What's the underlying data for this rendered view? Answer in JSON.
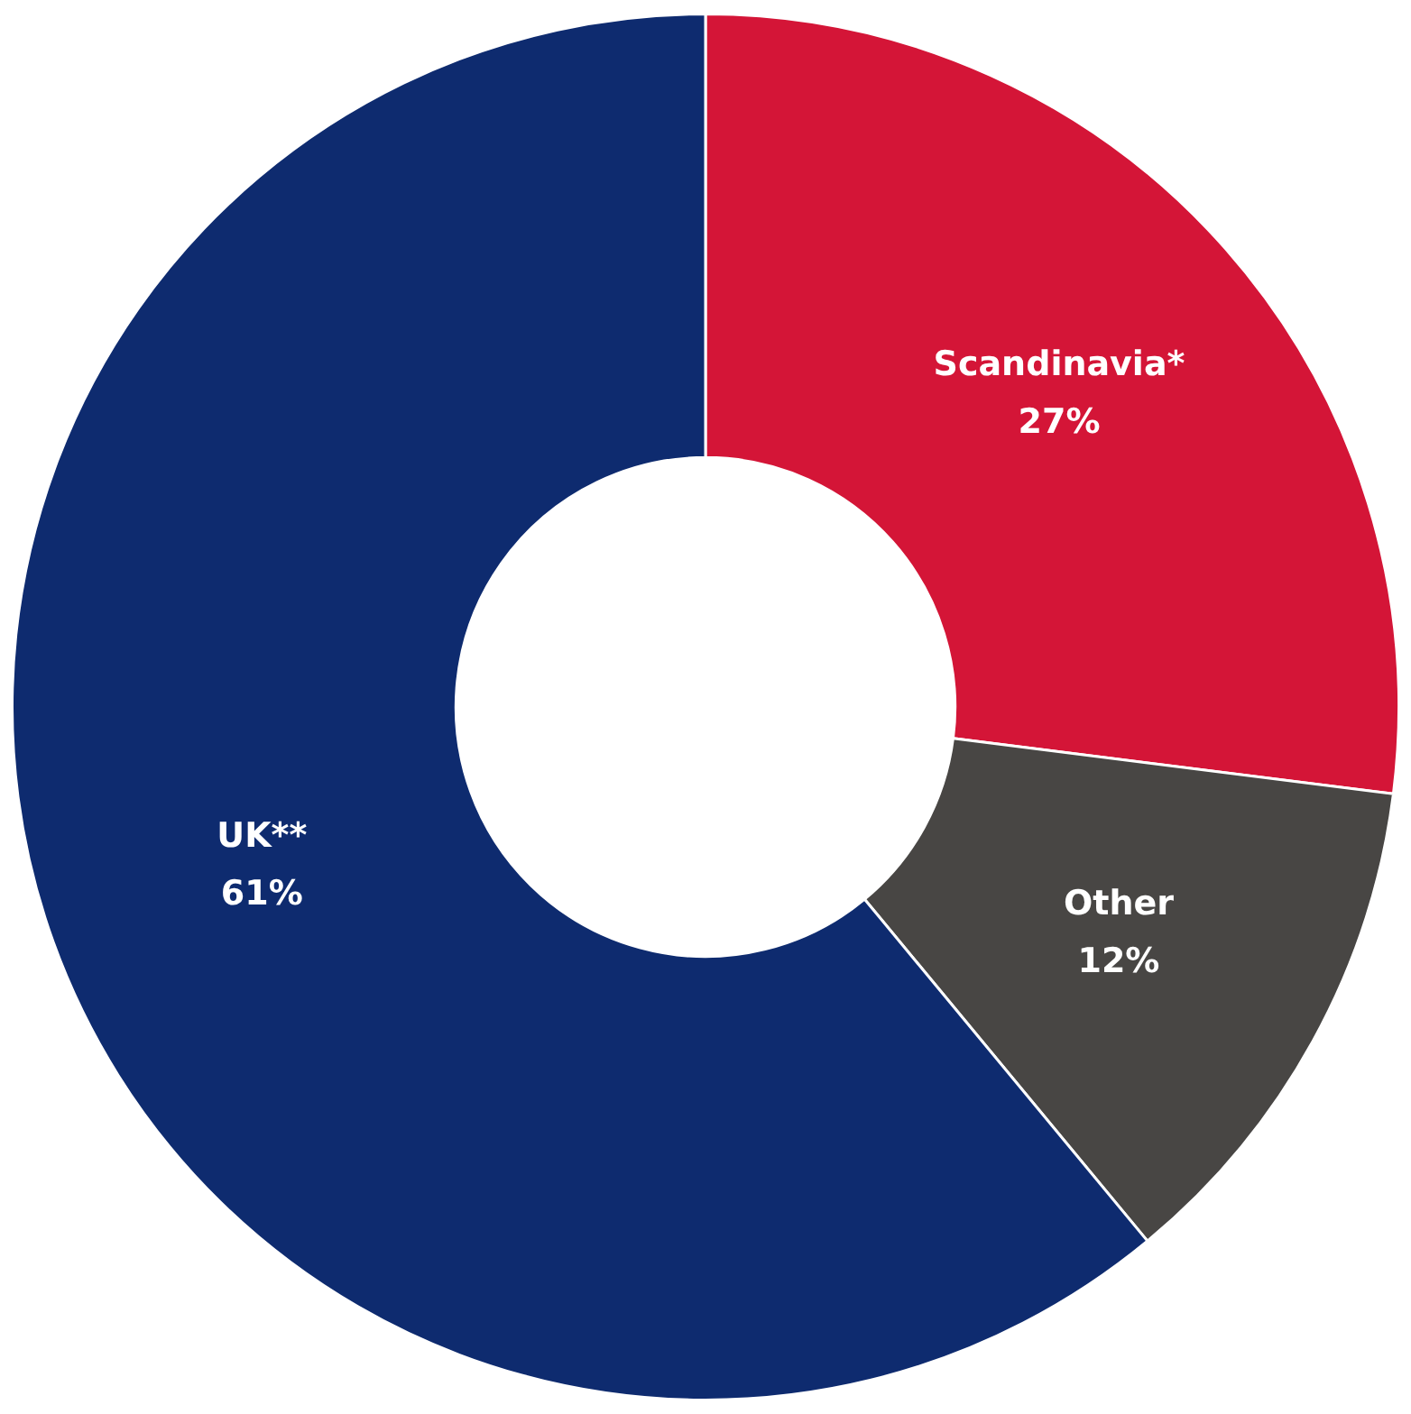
{
  "chart_data": {
    "type": "donut",
    "categories": [
      "Scandinavia*",
      "Other",
      "UK**"
    ],
    "values": [
      27,
      12,
      61
    ],
    "colors": [
      "#d41537",
      "#484644",
      "#0e2b6f"
    ],
    "value_labels": [
      "27%",
      "12%",
      "61%"
    ],
    "legend": false
  }
}
